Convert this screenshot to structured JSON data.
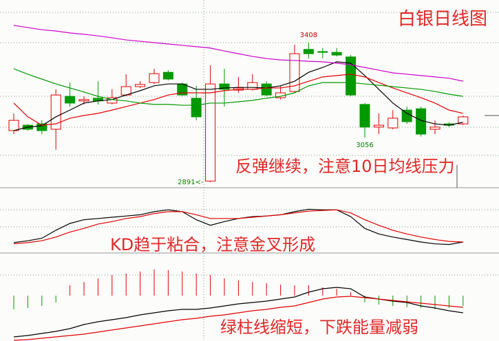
{
  "chart_data": [
    {
      "type": "candlestick",
      "title": "白银日线图",
      "annotation": "反弹继续，注意10日均线压力",
      "categories": [
        null,
        null,
        null,
        null,
        null,
        null,
        null,
        null,
        null,
        null,
        null,
        null,
        null,
        null,
        null,
        null,
        null,
        null,
        null,
        null,
        null,
        null,
        null,
        null,
        null,
        null,
        null,
        null,
        null,
        null,
        null,
        null,
        null
      ],
      "open": [
        3082,
        3102,
        3107,
        3087,
        3209,
        3192,
        3202,
        3184,
        3214,
        3245,
        3260,
        3298,
        3255,
        3202,
        2895,
        3255,
        3232,
        3235,
        3255,
        3204,
        3227,
        3383,
        3375,
        3372,
        3355,
        3179,
        3095,
        3092,
        3158,
        3163,
        3087,
        3107,
        3107
      ],
      "high": [
        3146,
        3107,
        3120,
        3235,
        3260,
        3209,
        3265,
        3235,
        3291,
        3265,
        3311,
        3306,
        3260,
        3248,
        3324,
        3311,
        3281,
        3291,
        3265,
        3248,
        3400,
        3408,
        3388,
        3388,
        3362,
        3184,
        3146,
        3158,
        3171,
        3171,
        3120,
        3113,
        3138
      ],
      "low": [
        3069,
        3082,
        3069,
        3011,
        3171,
        3179,
        3179,
        3179,
        3209,
        3240,
        3255,
        3268,
        3209,
        3120,
        2891,
        3171,
        3222,
        3230,
        3209,
        3197,
        3222,
        3349,
        3349,
        3357,
        3209,
        3056,
        3069,
        3087,
        3107,
        3060,
        3069,
        3095,
        3102
      ],
      "close": [
        3120,
        3087,
        3082,
        3214,
        3184,
        3197,
        3192,
        3204,
        3245,
        3253,
        3293,
        3273,
        3214,
        3133,
        3255,
        3235,
        3240,
        3260,
        3214,
        3222,
        3367,
        3367,
        3372,
        3362,
        3214,
        3095,
        3102,
        3128,
        3115,
        3069,
        3095,
        3102,
        3133
      ],
      "up_color": "#e00000",
      "down_color": "#009900",
      "series": [
        {
          "name": "MA5",
          "color": "#000000",
          "values": [
            3082,
            3095,
            3100,
            3133,
            3158,
            3184,
            3192,
            3197,
            3214,
            3230,
            3248,
            3255,
            3255,
            3235,
            3235,
            3240,
            3242,
            3242,
            3240,
            3248,
            3265,
            3298,
            3316,
            3337,
            3332,
            3286,
            3235,
            3184,
            3146,
            3120,
            3107,
            3102,
            3113
          ]
        },
        {
          "name": "MA10",
          "color": "#e00000",
          "values": [
            3184,
            3133,
            3102,
            3107,
            3128,
            3138,
            3146,
            3158,
            3171,
            3184,
            3197,
            3214,
            3222,
            3222,
            3222,
            3230,
            3235,
            3235,
            3240,
            3240,
            3248,
            3265,
            3281,
            3286,
            3291,
            3281,
            3260,
            3240,
            3222,
            3204,
            3184,
            3158,
            3146
          ]
        },
        {
          "name": "MA20",
          "color": "#009900",
          "values": [
            3311,
            3291,
            3273,
            3255,
            3240,
            3225,
            3209,
            3197,
            3192,
            3184,
            3179,
            3179,
            3176,
            3176,
            3184,
            3184,
            3189,
            3194,
            3202,
            3209,
            3222,
            3248,
            3260,
            3260,
            3260,
            3255,
            3250,
            3245,
            3240,
            3235,
            3227,
            3217,
            3209
          ]
        },
        {
          "name": "MA60",
          "color": "#cc00cc",
          "values": [
            3472,
            3464,
            3456,
            3451,
            3444,
            3439,
            3433,
            3426,
            3418,
            3413,
            3408,
            3403,
            3398,
            3393,
            3388,
            3377,
            3367,
            3357,
            3349,
            3344,
            3342,
            3339,
            3337,
            3332,
            3326,
            3316,
            3306,
            3296,
            3291,
            3286,
            3281,
            3276,
            3265
          ]
        }
      ],
      "price_labels": [
        {
          "value": 3408,
          "label": "3408"
        },
        {
          "value": 3056,
          "label": "3056"
        },
        {
          "value": 2891,
          "label": "2891<-"
        }
      ],
      "ylim": [
        2873,
        3566
      ]
    },
    {
      "type": "line",
      "annotation": "KD趋于粘合，注意金叉形成",
      "series": [
        {
          "name": "K",
          "color": "#000000",
          "values": [
            19,
            22,
            26,
            39,
            50,
            56,
            58,
            60,
            62,
            64,
            69,
            72,
            69,
            56,
            47,
            53,
            58,
            61,
            62,
            64,
            69,
            73,
            72,
            72,
            61,
            42,
            33,
            28,
            24,
            20,
            17,
            16,
            20
          ]
        },
        {
          "name": "D",
          "color": "#e00000",
          "values": [
            17,
            19,
            22,
            28,
            36,
            42,
            49,
            53,
            58,
            61,
            66,
            69,
            69,
            64,
            58,
            58,
            58,
            60,
            62,
            64,
            67,
            70,
            71,
            72,
            67,
            56,
            47,
            39,
            33,
            28,
            24,
            21,
            20
          ]
        }
      ],
      "ylim": [
        0,
        100
      ]
    },
    {
      "type": "macd",
      "annotation": "绿柱线缩短，下跌能量减弱",
      "values": [
        -20,
        -18,
        -15,
        -10,
        15,
        20,
        25,
        30,
        32,
        35,
        38,
        37,
        35,
        32,
        30,
        25,
        22,
        20,
        18,
        16,
        15,
        15,
        12,
        10,
        5,
        -10,
        -13,
        -15,
        -17,
        -18,
        -20,
        -18,
        -15
      ],
      "up_color": "#e00000",
      "down_color": "#009900",
      "series": [
        {
          "name": "DIF",
          "color": "#000000",
          "values": [
            -60,
            -58,
            -55,
            -52,
            -48,
            -42,
            -38,
            -35,
            -32,
            -28,
            -25,
            -22,
            -20,
            -20,
            -18,
            -15,
            -12,
            -10,
            -8,
            -5,
            -2,
            5,
            10,
            12,
            10,
            -2,
            -5,
            -8,
            -10,
            -15,
            -18,
            -22,
            -25
          ]
        },
        {
          "name": "DEA",
          "color": "#e00000",
          "values": [
            -65,
            -64,
            -62,
            -60,
            -58,
            -56,
            -53,
            -50,
            -47,
            -44,
            -41,
            -38,
            -35,
            -33,
            -30,
            -28,
            -25,
            -22,
            -20,
            -17,
            -15,
            -10,
            -5,
            -2,
            -1,
            -3,
            -5,
            -7,
            -9,
            -11,
            -13,
            -15,
            -17
          ]
        }
      ],
      "ylim": [
        -66,
        60
      ]
    }
  ]
}
